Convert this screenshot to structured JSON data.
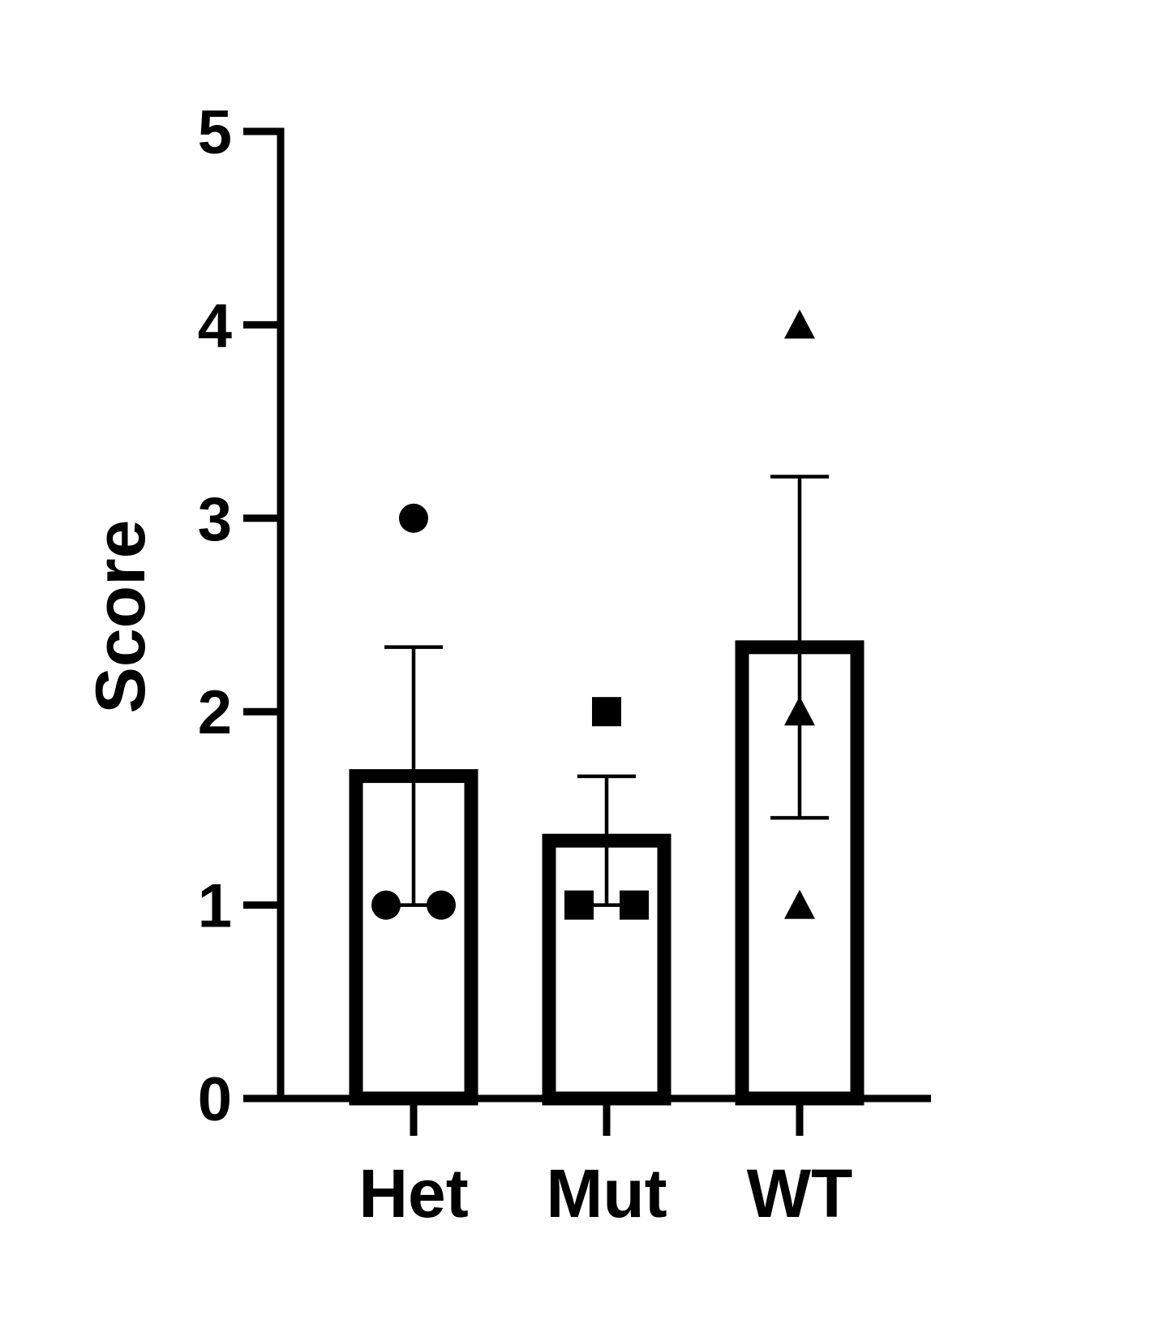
{
  "chart_data": {
    "type": "bar",
    "ylabel": "Score",
    "xlabel": "",
    "ylim": [
      0,
      5
    ],
    "yticks": [
      "0",
      "1",
      "2",
      "3",
      "4",
      "5"
    ],
    "categories": [
      "Het",
      "Mut",
      "WT"
    ],
    "values": [
      1.667,
      1.333,
      2.333
    ],
    "error_sem": [
      0.667,
      0.333,
      0.882
    ],
    "points": [
      [
        1,
        1,
        3
      ],
      [
        1,
        1,
        2
      ],
      [
        1,
        2,
        4
      ]
    ],
    "markers": [
      "circle",
      "square",
      "triangle"
    ],
    "grid": false,
    "colors": {
      "ink": "#000000",
      "bar_fill": "#ffffff"
    }
  }
}
